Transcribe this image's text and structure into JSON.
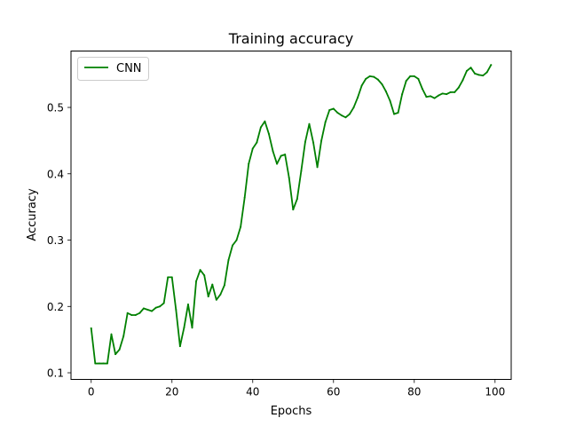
{
  "chart_data": {
    "type": "line",
    "title": "Training accuracy",
    "xlabel": "Epochs",
    "ylabel": "Accuracy",
    "xlim": [
      -5,
      104
    ],
    "ylim": [
      0.09,
      0.585
    ],
    "xticks": [
      0,
      20,
      40,
      60,
      80,
      100
    ],
    "xtick_labels": [
      "0",
      "20",
      "40",
      "60",
      "80",
      "100"
    ],
    "yticks": [
      0.1,
      0.2,
      0.3,
      0.4,
      0.5
    ],
    "ytick_labels": [
      "0.1",
      "0.2",
      "0.3",
      "0.4",
      "0.5"
    ],
    "grid": false,
    "legend_position": "upper-left",
    "series": [
      {
        "name": "CNN",
        "color": "#008000",
        "x": [
          0,
          1,
          2,
          3,
          4,
          5,
          6,
          7,
          8,
          9,
          10,
          11,
          12,
          13,
          14,
          15,
          16,
          17,
          18,
          19,
          20,
          21,
          22,
          23,
          24,
          25,
          26,
          27,
          28,
          29,
          30,
          31,
          32,
          33,
          34,
          35,
          36,
          37,
          38,
          39,
          40,
          41,
          42,
          43,
          44,
          45,
          46,
          47,
          48,
          49,
          50,
          51,
          52,
          53,
          54,
          55,
          56,
          57,
          58,
          59,
          60,
          61,
          62,
          63,
          64,
          65,
          66,
          67,
          68,
          69,
          70,
          71,
          72,
          73,
          74,
          75,
          76,
          77,
          78,
          79,
          80,
          81,
          82,
          83,
          84,
          85,
          86,
          87,
          88,
          89,
          90,
          91,
          92,
          93,
          94,
          95,
          96,
          97,
          98,
          99
        ],
        "values": [
          0.167,
          0.114,
          0.114,
          0.114,
          0.114,
          0.158,
          0.128,
          0.135,
          0.155,
          0.19,
          0.187,
          0.187,
          0.19,
          0.197,
          0.195,
          0.193,
          0.198,
          0.2,
          0.205,
          0.244,
          0.244,
          0.195,
          0.14,
          0.168,
          0.203,
          0.168,
          0.238,
          0.255,
          0.247,
          0.215,
          0.233,
          0.21,
          0.218,
          0.232,
          0.27,
          0.292,
          0.3,
          0.32,
          0.364,
          0.415,
          0.438,
          0.447,
          0.47,
          0.479,
          0.46,
          0.434,
          0.415,
          0.427,
          0.429,
          0.394,
          0.346,
          0.362,
          0.404,
          0.448,
          0.475,
          0.447,
          0.41,
          0.45,
          0.478,
          0.496,
          0.498,
          0.492,
          0.488,
          0.485,
          0.49,
          0.5,
          0.515,
          0.533,
          0.543,
          0.547,
          0.546,
          0.542,
          0.535,
          0.524,
          0.51,
          0.49,
          0.492,
          0.52,
          0.54,
          0.547,
          0.547,
          0.543,
          0.528,
          0.516,
          0.517,
          0.514,
          0.518,
          0.521,
          0.52,
          0.523,
          0.523,
          0.53,
          0.541,
          0.555,
          0.56,
          0.551,
          0.549,
          0.548,
          0.553,
          0.564
        ]
      }
    ]
  }
}
